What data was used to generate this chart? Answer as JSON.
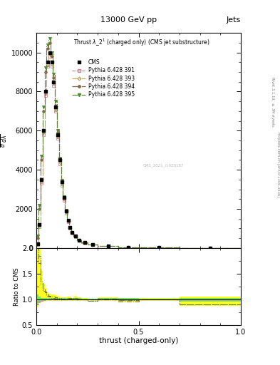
{
  "title_top": "13000 GeV pp",
  "title_right": "Jets",
  "plot_title": "Thrust $\\lambda$_2$^1$ (charged only) (CMS jet substructure)",
  "xlabel": "thrust (charged-only)",
  "ylabel_main": "$\\frac{1}{\\sigma}\\frac{dN}{d\\lambda}$",
  "ylabel_ratio": "Ratio to CMS",
  "right_label": "Rivet 3.1.10, $\\geq$ 3M events",
  "right_label2": "mcplots.cern.ch [arXiv:1306.3436]",
  "watermark": "CMS_2021_I1920187",
  "cms_label": "CMS",
  "pythia_labels": [
    "Pythia 6.428 391",
    "Pythia 6.428 393",
    "Pythia 6.428 394",
    "Pythia 6.428 395"
  ],
  "pythia_colors": [
    "#cc8899",
    "#bbaa66",
    "#886644",
    "#558833"
  ],
  "xlim": [
    0,
    1
  ],
  "ylim_main": [
    0,
    11000
  ],
  "ylim_ratio": [
    0.5,
    2.0
  ],
  "thrust_bins": [
    0.0,
    0.01,
    0.02,
    0.03,
    0.04,
    0.05,
    0.06,
    0.07,
    0.08,
    0.09,
    0.1,
    0.11,
    0.12,
    0.13,
    0.14,
    0.15,
    0.16,
    0.17,
    0.18,
    0.2,
    0.22,
    0.25,
    0.3,
    0.4,
    0.5,
    0.7,
    1.0
  ],
  "cms_values": [
    200,
    1200,
    3500,
    6000,
    8000,
    9500,
    10000,
    9500,
    8500,
    7200,
    5800,
    4500,
    3400,
    2600,
    1900,
    1400,
    1050,
    800,
    600,
    400,
    280,
    180,
    100,
    50,
    20,
    10
  ],
  "pythia391_values": [
    180,
    1100,
    3300,
    5800,
    7800,
    9300,
    9800,
    9300,
    8300,
    7000,
    5600,
    4300,
    3200,
    2450,
    1800,
    1350,
    1000,
    760,
    580,
    380,
    260,
    165,
    95,
    45,
    18,
    8
  ],
  "pythia393_values": [
    190,
    1150,
    3400,
    5900,
    7900,
    9400,
    9900,
    9400,
    8400,
    7100,
    5700,
    4400,
    3300,
    2500,
    1850,
    1380,
    1020,
    780,
    590,
    390,
    270,
    170,
    98,
    47,
    19,
    9
  ],
  "pythia394_values": [
    500,
    2000,
    4500,
    7000,
    9000,
    10200,
    10500,
    9800,
    8700,
    7300,
    5900,
    4550,
    3400,
    2600,
    1900,
    1420,
    1060,
    800,
    610,
    400,
    275,
    172,
    100,
    48,
    20,
    9
  ],
  "pythia395_values": [
    600,
    2200,
    4700,
    7200,
    9200,
    10400,
    10700,
    10000,
    8900,
    7500,
    6000,
    4600,
    3450,
    2620,
    1920,
    1430,
    1070,
    810,
    615,
    402,
    278,
    174,
    101,
    49,
    20,
    9
  ],
  "ratio391": [
    0.9,
    0.95,
    0.97,
    0.98,
    0.99,
    0.99,
    0.99,
    0.99,
    0.99,
    0.99,
    0.99,
    0.99,
    0.99,
    0.99,
    0.99,
    1.0,
    1.0,
    1.0,
    1.0,
    1.0,
    1.0,
    1.0,
    1.0,
    1.0,
    1.0,
    1.0
  ],
  "ratio393": [
    0.95,
    0.97,
    0.98,
    0.99,
    0.99,
    1.0,
    1.0,
    1.0,
    1.0,
    1.0,
    1.0,
    1.0,
    1.0,
    1.0,
    1.0,
    1.0,
    1.0,
    1.0,
    1.0,
    1.0,
    1.0,
    1.0,
    1.0,
    1.0,
    1.0,
    1.0
  ],
  "ratio394": [
    2.5,
    1.7,
    1.3,
    1.17,
    1.13,
    1.07,
    1.05,
    1.03,
    1.02,
    1.01,
    1.01,
    1.01,
    1.0,
    1.0,
    1.0,
    1.01,
    1.01,
    1.0,
    1.02,
    1.0,
    1.0,
    0.97,
    1.0,
    0.96,
    1.0,
    0.9
  ],
  "ratio395": [
    3.0,
    1.85,
    1.35,
    1.2,
    1.15,
    1.09,
    1.07,
    1.05,
    1.05,
    1.04,
    1.03,
    1.02,
    1.01,
    1.01,
    1.01,
    1.02,
    1.02,
    1.01,
    1.03,
    1.01,
    0.99,
    0.97,
    1.01,
    0.98,
    1.0,
    0.9
  ],
  "band_yellow_lo": [
    0.85,
    0.92,
    0.95,
    0.96,
    0.97,
    0.97,
    0.97,
    0.97,
    0.97,
    0.97,
    0.97,
    0.97,
    0.97,
    0.97,
    0.97,
    0.97,
    0.97,
    0.97,
    0.97,
    0.97,
    0.97,
    0.97,
    0.97,
    0.95,
    0.97,
    0.87
  ],
  "band_yellow_hi": [
    3.8,
    2.2,
    1.55,
    1.3,
    1.22,
    1.14,
    1.11,
    1.09,
    1.09,
    1.08,
    1.06,
    1.04,
    1.04,
    1.04,
    1.04,
    1.05,
    1.05,
    1.03,
    1.06,
    1.04,
    1.02,
    1.0,
    1.04,
    1.03,
    1.03,
    1.05
  ],
  "band_green_lo": [
    0.88,
    0.93,
    0.96,
    0.97,
    0.98,
    0.98,
    0.98,
    0.98,
    0.98,
    0.98,
    0.98,
    0.98,
    0.98,
    0.98,
    0.98,
    0.98,
    0.98,
    0.98,
    0.98,
    0.98,
    0.98,
    0.98,
    0.98,
    0.97,
    0.98,
    0.95
  ],
  "band_green_hi": [
    1.1,
    1.05,
    1.02,
    1.02,
    1.02,
    1.02,
    1.02,
    1.02,
    1.02,
    1.02,
    1.02,
    1.02,
    1.02,
    1.02,
    1.02,
    1.02,
    1.02,
    1.02,
    1.02,
    1.02,
    1.01,
    1.01,
    1.02,
    1.02,
    1.01,
    1.02
  ]
}
